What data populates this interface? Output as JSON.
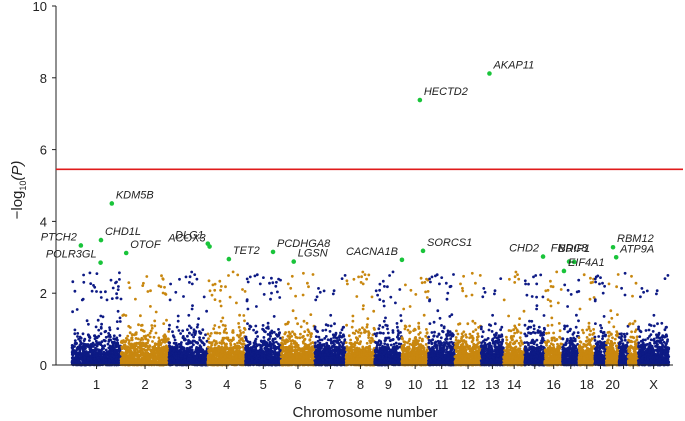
{
  "chart_data": {
    "type": "scatter",
    "subtype": "manhattan",
    "title": "",
    "xlabel": "Chromosome number",
    "ylabel_prefix": "−log",
    "ylabel_sub": "10",
    "ylabel_var": "(P)",
    "ylim": [
      0,
      10
    ],
    "yticks": [
      0,
      2,
      4,
      6,
      8,
      10
    ],
    "significance_threshold": 5.45,
    "colors": {
      "odd": "#0d1a85",
      "even": "#c8870f",
      "threshold": "#e01b1b",
      "hit": "#19c43a"
    },
    "chromosomes": [
      {
        "name": "1",
        "length": 249,
        "label": "1"
      },
      {
        "name": "2",
        "length": 243,
        "label": "2"
      },
      {
        "name": "3",
        "length": 198,
        "label": "3"
      },
      {
        "name": "4",
        "length": 190,
        "label": "4"
      },
      {
        "name": "5",
        "length": 181,
        "label": "5"
      },
      {
        "name": "6",
        "length": 171,
        "label": "6"
      },
      {
        "name": "7",
        "length": 159,
        "label": "7"
      },
      {
        "name": "8",
        "length": 145,
        "label": "8"
      },
      {
        "name": "9",
        "length": 138,
        "label": "9"
      },
      {
        "name": "10",
        "length": 134,
        "label": "10"
      },
      {
        "name": "11",
        "length": 135,
        "label": "11"
      },
      {
        "name": "12",
        "length": 133,
        "label": "12"
      },
      {
        "name": "13",
        "length": 114,
        "label": "13"
      },
      {
        "name": "14",
        "length": 107,
        "label": "14"
      },
      {
        "name": "15",
        "length": 102,
        "label": ""
      },
      {
        "name": "16",
        "length": 90,
        "label": "16"
      },
      {
        "name": "17",
        "length": 83,
        "label": ""
      },
      {
        "name": "18",
        "length": 80,
        "label": "18"
      },
      {
        "name": "19",
        "length": 59,
        "label": ""
      },
      {
        "name": "20",
        "length": 64,
        "label": "20"
      },
      {
        "name": "21",
        "length": 47,
        "label": ""
      },
      {
        "name": "22",
        "length": 51,
        "label": ""
      },
      {
        "name": "X",
        "length": 156,
        "label": "X"
      }
    ],
    "hits": [
      {
        "gene": "AKAP11",
        "chrom": "13",
        "pos": 42,
        "p": 8.12,
        "label_side": "right"
      },
      {
        "gene": "HECTD2",
        "chrom": "10",
        "pos": 91,
        "p": 7.38,
        "label_side": "right"
      },
      {
        "gene": "KDM5B",
        "chrom": "1",
        "pos": 202,
        "p": 4.5,
        "label_side": "right"
      },
      {
        "gene": "PTCH2",
        "chrom": "1",
        "pos": 45,
        "p": 3.33,
        "label_side": "left"
      },
      {
        "gene": "CHD1L",
        "chrom": "1",
        "pos": 147,
        "p": 3.48,
        "label_side": "right"
      },
      {
        "gene": "POLR3GL",
        "chrom": "1",
        "pos": 145,
        "p": 2.85,
        "label_side": "left"
      },
      {
        "gene": "OTOF",
        "chrom": "2",
        "pos": 26,
        "p": 3.12,
        "label_side": "right"
      },
      {
        "gene": "DLG1",
        "chrom": "3",
        "pos": 197,
        "p": 3.38,
        "label_side": "left"
      },
      {
        "gene": "ACOX3",
        "chrom": "4",
        "pos": 8,
        "p": 3.3,
        "label_side": "left"
      },
      {
        "gene": "TET2",
        "chrom": "4",
        "pos": 106,
        "p": 2.95,
        "label_side": "right"
      },
      {
        "gene": "PCDHGA8",
        "chrom": "5",
        "pos": 140,
        "p": 3.15,
        "label_side": "right"
      },
      {
        "gene": "LGSN",
        "chrom": "6",
        "pos": 64,
        "p": 2.88,
        "label_side": "right"
      },
      {
        "gene": "CACNA1B",
        "chrom": "9",
        "pos": 138,
        "p": 2.93,
        "label_side": "left"
      },
      {
        "gene": "SORCS1",
        "chrom": "10",
        "pos": 107,
        "p": 3.18,
        "label_side": "right"
      },
      {
        "gene": "CHD2",
        "chrom": "15",
        "pos": 93,
        "p": 3.02,
        "label_side": "left"
      },
      {
        "gene": "FNDC8",
        "chrom": "17",
        "pos": 33,
        "p": 2.88,
        "label_side": "up"
      },
      {
        "gene": "BRIP1",
        "chrom": "17",
        "pos": 59,
        "p": 2.87,
        "label_side": "up"
      },
      {
        "gene": "EIF4A1",
        "chrom": "17",
        "pos": 7,
        "p": 2.62,
        "label_side": "right"
      },
      {
        "gene": "RBM12",
        "chrom": "20",
        "pos": 34,
        "p": 3.28,
        "label_side": "right"
      },
      {
        "gene": "ATP9A",
        "chrom": "20",
        "pos": 50,
        "p": 3.0,
        "label_side": "right"
      }
    ]
  }
}
